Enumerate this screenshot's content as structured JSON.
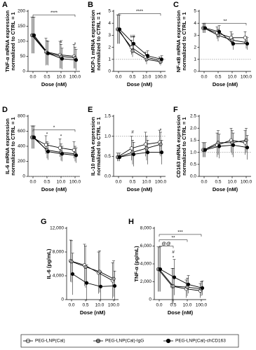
{
  "legend": [
    {
      "name": "PEG-LNP(Cal)",
      "color": "#ffffff"
    },
    {
      "name": "PEG-LNP(Cal)-IgG",
      "color": "#a0a0a0"
    },
    {
      "name": "PEG-LNP(Cal)-chCD163",
      "color": "#000000"
    }
  ],
  "chart_data": [
    {
      "type": "line",
      "letter": "A",
      "y_label": [
        "TNF-α mRNA expression",
        "normalized to CTRL = 1"
      ],
      "x_label": "Dose (nM)",
      "categories": [
        "0.0",
        "0.5",
        "10.0",
        "100.0"
      ],
      "ylim": [
        0,
        200
      ],
      "yticks": [
        0,
        50,
        100,
        150,
        200
      ],
      "ref_line": 1,
      "series": [
        {
          "color": "#ffffff",
          "values": [
            120,
            65,
            55,
            50
          ],
          "errors": [
            60,
            45,
            45,
            40
          ]
        },
        {
          "color": "#a0a0a0",
          "values": [
            120,
            62,
            50,
            45
          ],
          "errors": [
            60,
            40,
            40,
            35
          ]
        },
        {
          "color": "#000000",
          "values": [
            120,
            60,
            42,
            38
          ],
          "errors": [
            60,
            40,
            35,
            35
          ]
        }
      ],
      "brackets": [
        {
          "text": "****",
          "from": "0.0",
          "to": "100.0",
          "y": 188
        }
      ],
      "marks": [
        {
          "text": "#",
          "x": "10.0",
          "y": 98
        },
        {
          "text": "*",
          "x": "100.0",
          "y": 90
        }
      ]
    },
    {
      "type": "line",
      "letter": "B",
      "y_label": [
        "MCP-1 mRNA expression",
        "normalized to CTRL = 1"
      ],
      "x_label": "Dose (nM)",
      "categories": [
        "0.0",
        "0.5",
        "10.0",
        "100.0"
      ],
      "ylim": [
        0,
        5
      ],
      "yticks": [
        0,
        1,
        2,
        3,
        4,
        5
      ],
      "ref_line": 1,
      "series": [
        {
          "color": "#ffffff",
          "values": [
            3.5,
            2.0,
            1.2,
            0.9
          ],
          "errors": [
            1.2,
            0.6,
            0.4,
            0.3
          ]
        },
        {
          "color": "#a0a0a0",
          "values": [
            3.5,
            1.7,
            1.0,
            0.8
          ],
          "errors": [
            1.2,
            0.5,
            0.4,
            0.3
          ]
        },
        {
          "color": "#000000",
          "values": [
            3.5,
            2.3,
            1.3,
            1.0
          ],
          "errors": [
            1.2,
            0.6,
            0.4,
            0.3
          ]
        }
      ],
      "brackets": [
        {
          "text": "****",
          "from": "0.0",
          "to": "100.0",
          "y": 4.8
        }
      ],
      "marks": [
        {
          "text": "##",
          "x": "0.5",
          "y": 2.9
        }
      ]
    },
    {
      "type": "line",
      "letter": "C",
      "y_label": [
        "NF-κB mRNA expression",
        "normalized to CTRL = 1"
      ],
      "x_label": "Dose (nM)",
      "categories": [
        "0.0",
        "0.5",
        "10.0",
        "100.0"
      ],
      "ylim": [
        0,
        5
      ],
      "yticks": [
        0,
        1,
        2,
        3,
        4,
        5
      ],
      "ref_line": 1,
      "series": [
        {
          "color": "#ffffff",
          "values": [
            3.6,
            3.2,
            2.8,
            2.8
          ],
          "errors": [
            0.4,
            0.5,
            0.5,
            0.5
          ]
        },
        {
          "color": "#a0a0a0",
          "values": [
            3.6,
            3.0,
            2.6,
            2.4
          ],
          "errors": [
            0.4,
            0.5,
            0.5,
            0.5
          ]
        },
        {
          "color": "#000000",
          "values": [
            3.6,
            3.3,
            2.3,
            2.3
          ],
          "errors": [
            0.4,
            0.5,
            0.5,
            0.5
          ]
        }
      ],
      "brackets": [
        {
          "text": "**",
          "from": "0.0",
          "to": "100.0",
          "y": 4.0
        }
      ],
      "marks": []
    },
    {
      "type": "line",
      "letter": "D",
      "y_label": [
        "IL-6 mRNA expression",
        "normalized to CTRL = 1"
      ],
      "x_label": "Dose (nM)",
      "categories": [
        "0.0",
        "0.5",
        "10.0",
        "100.0"
      ],
      "ylim": [
        0,
        800
      ],
      "yticks": [
        0,
        200,
        400,
        600,
        800
      ],
      "ref_line": 1,
      "series": [
        {
          "color": "#ffffff",
          "values": [
            520,
            420,
            380,
            350
          ],
          "errors": [
            150,
            120,
            120,
            110
          ]
        },
        {
          "color": "#a0a0a0",
          "values": [
            520,
            350,
            320,
            300
          ],
          "errors": [
            150,
            110,
            110,
            100
          ]
        },
        {
          "color": "#000000",
          "values": [
            520,
            330,
            300,
            280
          ],
          "errors": [
            150,
            110,
            100,
            100
          ]
        }
      ],
      "brackets": [
        {
          "text": "*",
          "from": "0.0",
          "to": "100.0",
          "y": 620
        }
      ],
      "marks": [
        {
          "text": "*",
          "x": "0.5",
          "y": 560
        },
        {
          "text": "*",
          "x": "10.0",
          "y": 530
        }
      ]
    },
    {
      "type": "line",
      "letter": "E",
      "y_label": [
        "IL-10 mRNA expression",
        "normalized to CTRL = 1"
      ],
      "x_label": "Dose (nM)",
      "categories": [
        "0.0",
        "0.5",
        "10.0",
        "100.0"
      ],
      "ylim": [
        0,
        1.5
      ],
      "yticks": [
        {
          "value": 0,
          "label": "0.0"
        },
        0.5,
        {
          "value": 1,
          "label": "1.0"
        },
        1.5
      ],
      "ref_line": 1,
      "series": [
        {
          "color": "#ffffff",
          "values": [
            0.48,
            0.7,
            0.8,
            0.85
          ],
          "errors": [
            0.1,
            0.3,
            0.3,
            0.3
          ]
        },
        {
          "color": "#a0a0a0",
          "values": [
            0.48,
            0.6,
            0.7,
            0.8
          ],
          "errors": [
            0.1,
            0.3,
            0.3,
            0.3
          ]
        },
        {
          "color": "#000000",
          "values": [
            0.48,
            0.55,
            0.6,
            0.6
          ],
          "errors": [
            0.1,
            0.3,
            0.3,
            0.3
          ]
        }
      ],
      "brackets": [],
      "marks": [
        {
          "text": "#",
          "x": "0.5",
          "y": 1.1
        },
        {
          "text": "*",
          "x": "100.0",
          "y": 1.15
        }
      ]
    },
    {
      "type": "line",
      "letter": "F",
      "y_label": [
        "CD163 mRNA expression",
        "normalized to CTRL = 1"
      ],
      "x_label": "Dose (nM)",
      "categories": [
        "0.0",
        "0.5",
        "10.0",
        "100.0"
      ],
      "ylim": [
        0,
        2.5
      ],
      "yticks": [
        {
          "value": 0,
          "label": "0.0"
        },
        0.5,
        {
          "value": 1,
          "label": "1.0"
        },
        1.5,
        {
          "value": 2,
          "label": "2.0"
        },
        2.5
      ],
      "ref_line": 1,
      "series": [
        {
          "color": "#ffffff",
          "values": [
            1.1,
            1.3,
            1.5,
            1.4
          ],
          "errors": [
            0.3,
            0.5,
            0.5,
            0.5
          ]
        },
        {
          "color": "#a0a0a0",
          "values": [
            1.1,
            1.4,
            1.4,
            1.5
          ],
          "errors": [
            0.3,
            0.5,
            0.5,
            0.5
          ]
        },
        {
          "color": "#000000",
          "values": [
            1.1,
            1.25,
            1.3,
            1.2
          ],
          "errors": [
            0.3,
            0.5,
            0.5,
            0.5
          ]
        }
      ],
      "brackets": [],
      "marks": []
    },
    {
      "type": "line",
      "letter": "G",
      "y_label": [
        "IL-6 (pg/mL)"
      ],
      "x_label": "Dose (nM)",
      "categories": [
        "0.0",
        "0.5",
        "10.0",
        "100.0"
      ],
      "ylim": [
        0,
        12000
      ],
      "yticks": [
        0,
        {
          "value": 4000,
          "label": "4,000"
        },
        {
          "value": 8000,
          "label": "8,000"
        },
        {
          "value": 12000,
          "label": "12,000"
        }
      ],
      "series": [
        {
          "color": "#ffffff",
          "values": [
            6500,
            5800,
            4500,
            3200
          ],
          "errors": [
            3500,
            3500,
            3500,
            3000
          ]
        },
        {
          "color": "#a0a0a0",
          "values": [
            6400,
            5500,
            4700,
            3500
          ],
          "errors": [
            3500,
            3500,
            3500,
            3000
          ]
        },
        {
          "color": "#000000",
          "values": [
            4300,
            2800,
            2200,
            2300
          ],
          "errors": [
            3500,
            3000,
            2500,
            2500
          ]
        }
      ],
      "brackets": [],
      "marks": []
    },
    {
      "type": "line",
      "letter": "H",
      "y_label": [
        "TNF-α (pg/mL)"
      ],
      "x_label": "Dose (nM)",
      "categories": [
        "0.0",
        "0.5",
        "10.0",
        "100.0"
      ],
      "ylim": [
        0,
        8000
      ],
      "yticks": [
        0,
        {
          "value": 2000,
          "label": "2,000"
        },
        {
          "value": 4000,
          "label": "4,000"
        },
        {
          "value": 6000,
          "label": "6,000"
        },
        {
          "value": 8000,
          "label": "8,000"
        }
      ],
      "series": [
        {
          "color": "#ffffff",
          "values": [
            3400,
            1500,
            1200,
            1000
          ],
          "errors": [
            2500,
            2000,
            1000,
            800
          ]
        },
        {
          "color": "#a0a0a0",
          "values": [
            3400,
            1500,
            1400,
            1200
          ],
          "errors": [
            2500,
            2000,
            1000,
            800
          ]
        },
        {
          "color": "#000000",
          "values": [
            3400,
            2500,
            1700,
            1300
          ],
          "errors": [
            2500,
            2000,
            1000,
            800
          ]
        }
      ],
      "brackets": [
        {
          "text": "***",
          "from": "0.0",
          "to": "100.0",
          "y": 7300
        },
        {
          "text": "**",
          "from": "0.0",
          "to": "10.0",
          "y": 6700
        },
        {
          "text": "@@",
          "from": "0.0",
          "to": "0.5",
          "y": 6000
        }
      ],
      "marks": [
        {
          "text": "#",
          "x": "0.5",
          "y": 5300
        },
        {
          "text": "*",
          "x": "0.5",
          "y": 4700
        }
      ]
    }
  ]
}
